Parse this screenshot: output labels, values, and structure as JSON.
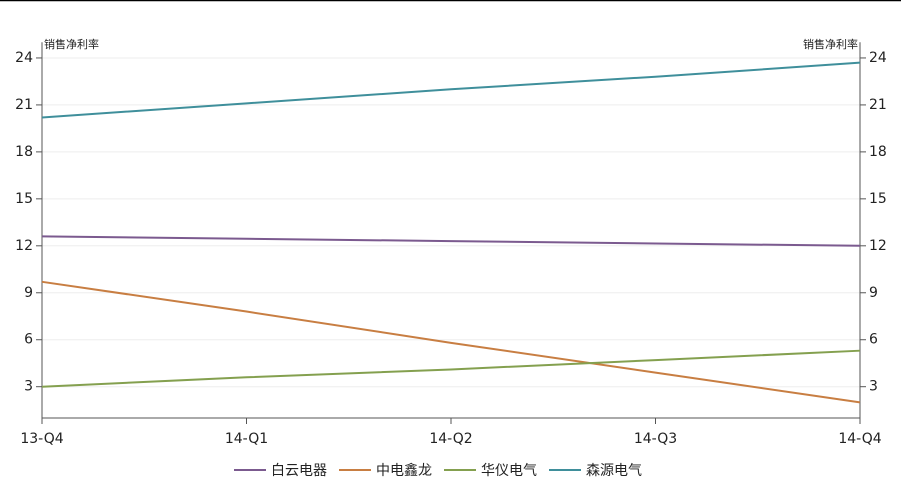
{
  "chart_data": {
    "type": "line",
    "y_label": "销售净利率",
    "y2_label": "销售净利率",
    "categories": [
      "13-Q4",
      "14-Q1",
      "14-Q2",
      "14-Q3",
      "14-Q4"
    ],
    "series": [
      {
        "name": "白云电器",
        "color": "#7b5a8f",
        "values": [
          12.6,
          12.45,
          12.3,
          12.15,
          12.0
        ]
      },
      {
        "name": "中电鑫龙",
        "color": "#c87e42",
        "values": [
          9.7,
          7.8,
          5.8,
          3.9,
          2.0
        ]
      },
      {
        "name": "华仪电气",
        "color": "#84a04f",
        "values": [
          3.0,
          3.6,
          4.1,
          4.7,
          5.3
        ]
      },
      {
        "name": "森源电气",
        "color": "#3f8f9b",
        "values": [
          20.2,
          21.1,
          22.0,
          22.8,
          23.7
        ]
      }
    ],
    "ylim": [
      1,
      25
    ],
    "yticks": [
      3,
      6,
      9,
      12,
      15,
      18,
      21,
      24
    ],
    "y2lim": [
      1,
      25
    ],
    "y2ticks": [
      3,
      6,
      9,
      12,
      15,
      18,
      21,
      24
    ],
    "grid": true
  }
}
